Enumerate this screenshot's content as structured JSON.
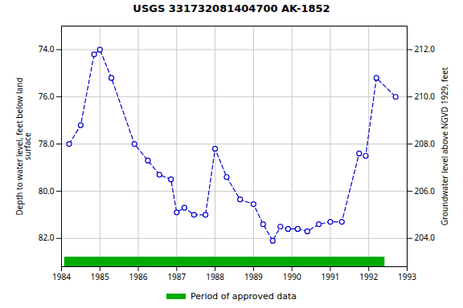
{
  "chart_data": {
    "type": "line",
    "title": "USGS 331732081404700 AK-1852",
    "ylabel": "Depth to water level, feet below land\nsurface",
    "y2label": "Groundwater level above NGVD 1929, feet",
    "x": [
      1984.2,
      1984.5,
      1984.85,
      1985.0,
      1985.3,
      1985.9,
      1986.25,
      1986.55,
      1986.85,
      1987.0,
      1987.2,
      1987.45,
      1987.75,
      1988.0,
      1988.3,
      1988.65,
      1989.0,
      1989.25,
      1989.5,
      1989.7,
      1989.9,
      1990.15,
      1990.4,
      1990.7,
      1991.0,
      1991.3,
      1991.75,
      1991.92,
      1992.2,
      1992.7
    ],
    "values": [
      78.0,
      77.2,
      74.2,
      74.0,
      75.2,
      78.0,
      78.7,
      79.3,
      79.5,
      80.9,
      80.7,
      81.0,
      81.0,
      78.2,
      79.4,
      80.35,
      80.55,
      81.4,
      82.1,
      81.5,
      81.6,
      81.6,
      81.7,
      81.4,
      81.3,
      81.3,
      78.4,
      78.5,
      75.2,
      76.0
    ],
    "color": "#0000cc",
    "marker": "o",
    "line_style": "dashed",
    "xlim": [
      1984,
      1993
    ],
    "xticks": [
      1984,
      1985,
      1986,
      1987,
      1988,
      1989,
      1990,
      1991,
      1992,
      1993
    ],
    "ylim": [
      83.2,
      73.0
    ],
    "yticks": [
      {
        "value": 74.0,
        "label": "74.0"
      },
      {
        "value": 76.0,
        "label": "76.0"
      },
      {
        "value": 78.0,
        "label": "78.0"
      },
      {
        "value": 80.0,
        "label": "80.0"
      },
      {
        "value": 82.0,
        "label": "82.0"
      }
    ],
    "y2lim": [
      202.8,
      213.0
    ],
    "y2ticks": [
      {
        "value": 204.0,
        "label": "204.0"
      },
      {
        "value": 206.0,
        "label": "206.0"
      },
      {
        "value": 208.0,
        "label": "208.0"
      },
      {
        "value": 210.0,
        "label": "210.0"
      },
      {
        "value": 212.0,
        "label": "212.0"
      }
    ],
    "grid": true,
    "legend": "bottom",
    "period": {
      "x_start": 1984.08,
      "x_end": 1992.42,
      "color": "#00aa00",
      "label": "Period of approved data"
    }
  }
}
